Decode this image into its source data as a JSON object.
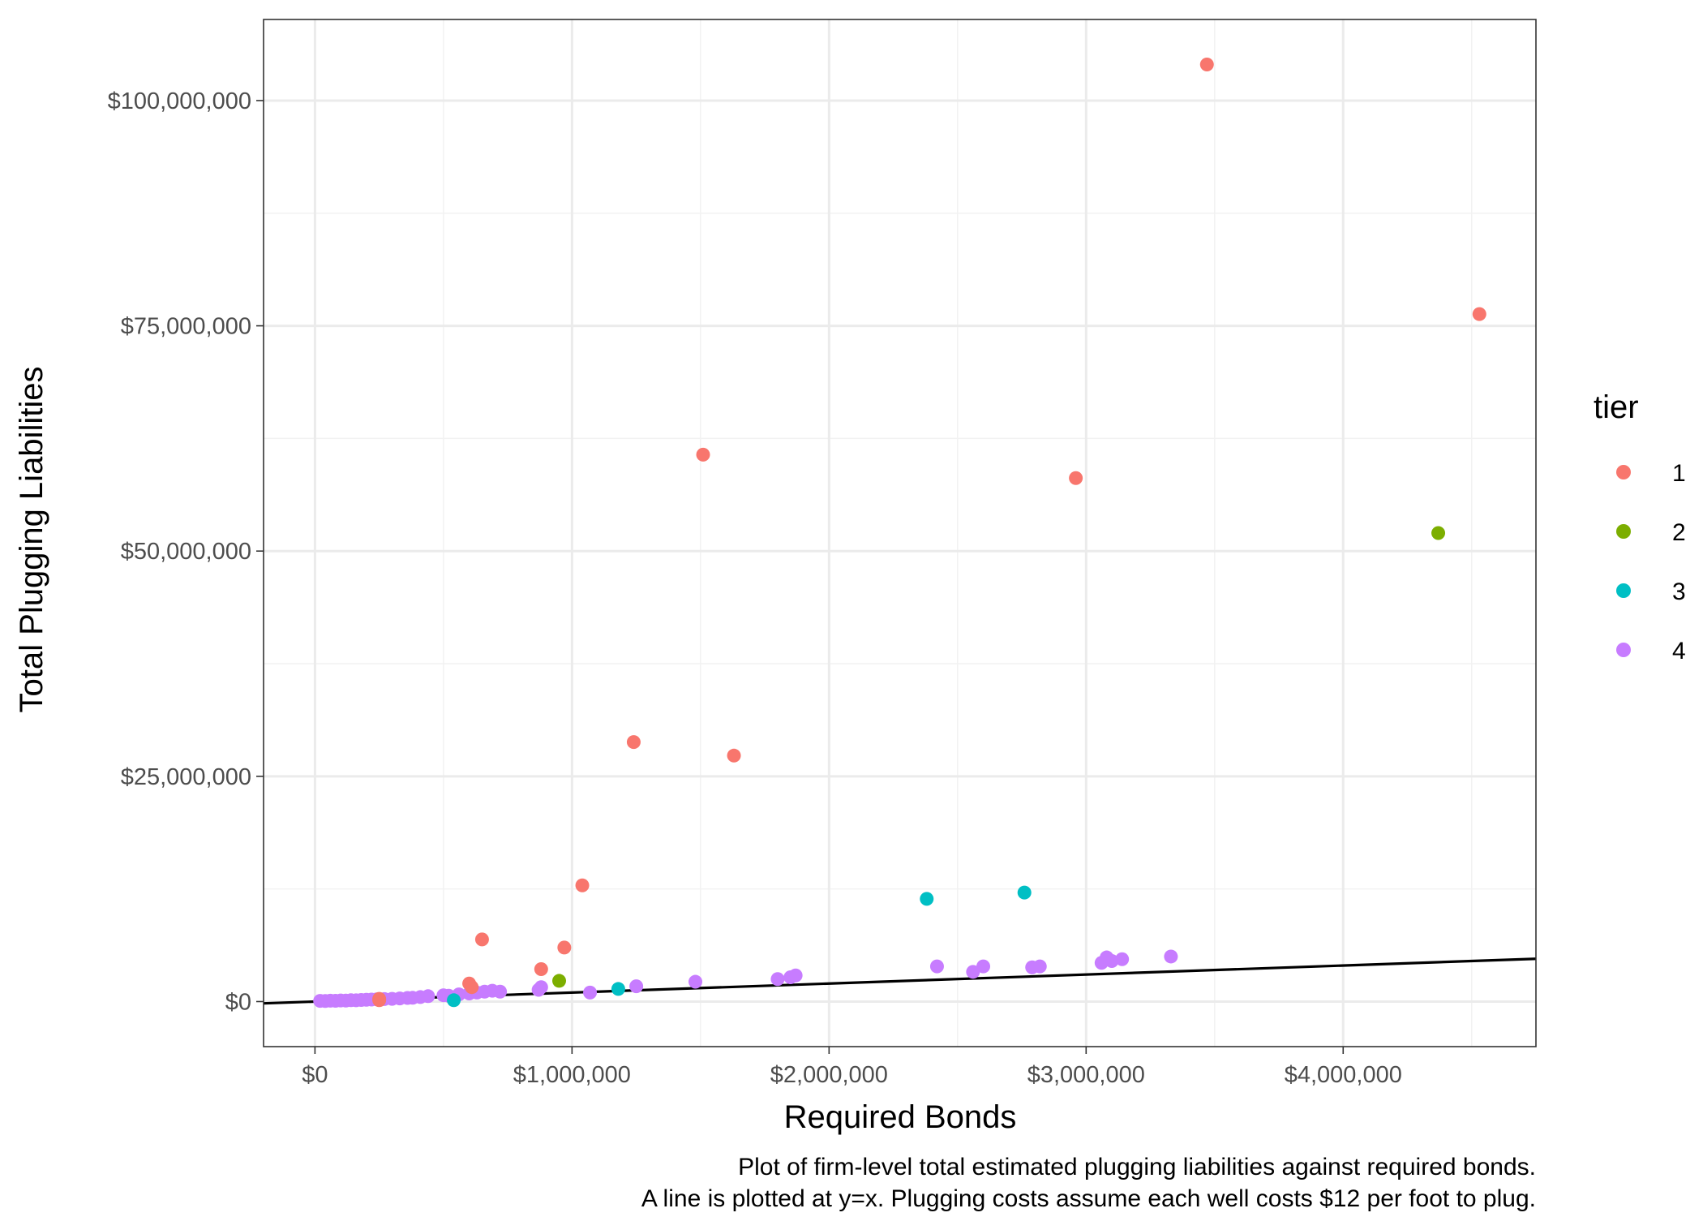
{
  "chart_data": {
    "type": "scatter",
    "xlabel": "Required Bonds",
    "ylabel": "Total Plugging Liabilities",
    "caption": [
      "Plot of firm-level total estimated plugging liabilities against required bonds.",
      "A line is plotted at y=x. Plugging costs assume each well costs $12 per foot to plug."
    ],
    "xlim": [
      -200000,
      4750000
    ],
    "ylim": [
      -5000000,
      109000000
    ],
    "x_ticks": [
      0,
      1000000,
      2000000,
      3000000,
      4000000
    ],
    "x_tick_labels": [
      "$0",
      "$1,000,000",
      "$2,000,000",
      "$3,000,000",
      "$4,000,000"
    ],
    "y_ticks": [
      0,
      25000000,
      50000000,
      75000000,
      100000000
    ],
    "y_tick_labels": [
      "$0",
      "$25,000,000",
      "$50,000,000",
      "$75,000,000",
      "$100,000,000"
    ],
    "grid": true,
    "reference_line": {
      "slope": 1,
      "intercept": 0
    },
    "legend": {
      "title": "tier",
      "position": "right",
      "entries": [
        {
          "label": "1",
          "color": "#F8766D"
        },
        {
          "label": "2",
          "color": "#7CAE00"
        },
        {
          "label": "3",
          "color": "#00BFC4"
        },
        {
          "label": "4",
          "color": "#C77CFF"
        }
      ]
    },
    "series": [
      {
        "tier": "1",
        "color": "#F8766D",
        "points": [
          [
            3470000,
            104000000
          ],
          [
            4530000,
            76300000
          ],
          [
            1510000,
            60700000
          ],
          [
            2960000,
            58100000
          ],
          [
            1240000,
            28800000
          ],
          [
            1630000,
            27300000
          ],
          [
            1040000,
            12900000
          ],
          [
            650000,
            6900000
          ],
          [
            970000,
            6000000
          ],
          [
            880000,
            3600000
          ],
          [
            600000,
            2000000
          ],
          [
            610000,
            1600000
          ],
          [
            250000,
            300000
          ],
          [
            250000,
            150000
          ]
        ]
      },
      {
        "tier": "2",
        "color": "#7CAE00",
        "points": [
          [
            4370000,
            52000000
          ],
          [
            950000,
            2300000
          ]
        ]
      },
      {
        "tier": "3",
        "color": "#00BFC4",
        "points": [
          [
            2760000,
            12100000
          ],
          [
            2380000,
            11400000
          ],
          [
            1180000,
            1400000
          ],
          [
            540000,
            150000
          ]
        ]
      },
      {
        "tier": "4",
        "color": "#C77CFF",
        "points": [
          [
            20000,
            80000
          ],
          [
            40000,
            60000
          ],
          [
            60000,
            100000
          ],
          [
            80000,
            90000
          ],
          [
            100000,
            120000
          ],
          [
            120000,
            110000
          ],
          [
            140000,
            150000
          ],
          [
            160000,
            140000
          ],
          [
            180000,
            180000
          ],
          [
            200000,
            200000
          ],
          [
            220000,
            220000
          ],
          [
            240000,
            250000
          ],
          [
            270000,
            280000
          ],
          [
            300000,
            300000
          ],
          [
            330000,
            350000
          ],
          [
            360000,
            400000
          ],
          [
            380000,
            420000
          ],
          [
            410000,
            500000
          ],
          [
            440000,
            600000
          ],
          [
            500000,
            700000
          ],
          [
            520000,
            650000
          ],
          [
            560000,
            800000
          ],
          [
            600000,
            900000
          ],
          [
            630000,
            1000000
          ],
          [
            660000,
            1100000
          ],
          [
            690000,
            1200000
          ],
          [
            720000,
            1100000
          ],
          [
            870000,
            1300000
          ],
          [
            880000,
            1600000
          ],
          [
            1070000,
            1000000
          ],
          [
            1250000,
            1700000
          ],
          [
            1480000,
            2200000
          ],
          [
            1800000,
            2500000
          ],
          [
            1850000,
            2700000
          ],
          [
            1870000,
            2900000
          ],
          [
            2420000,
            3900000
          ],
          [
            2560000,
            3300000
          ],
          [
            2600000,
            3900000
          ],
          [
            2790000,
            3800000
          ],
          [
            2820000,
            3900000
          ],
          [
            3060000,
            4300000
          ],
          [
            3080000,
            4900000
          ],
          [
            3100000,
            4500000
          ],
          [
            3140000,
            4700000
          ],
          [
            3330000,
            5000000
          ]
        ]
      }
    ]
  }
}
